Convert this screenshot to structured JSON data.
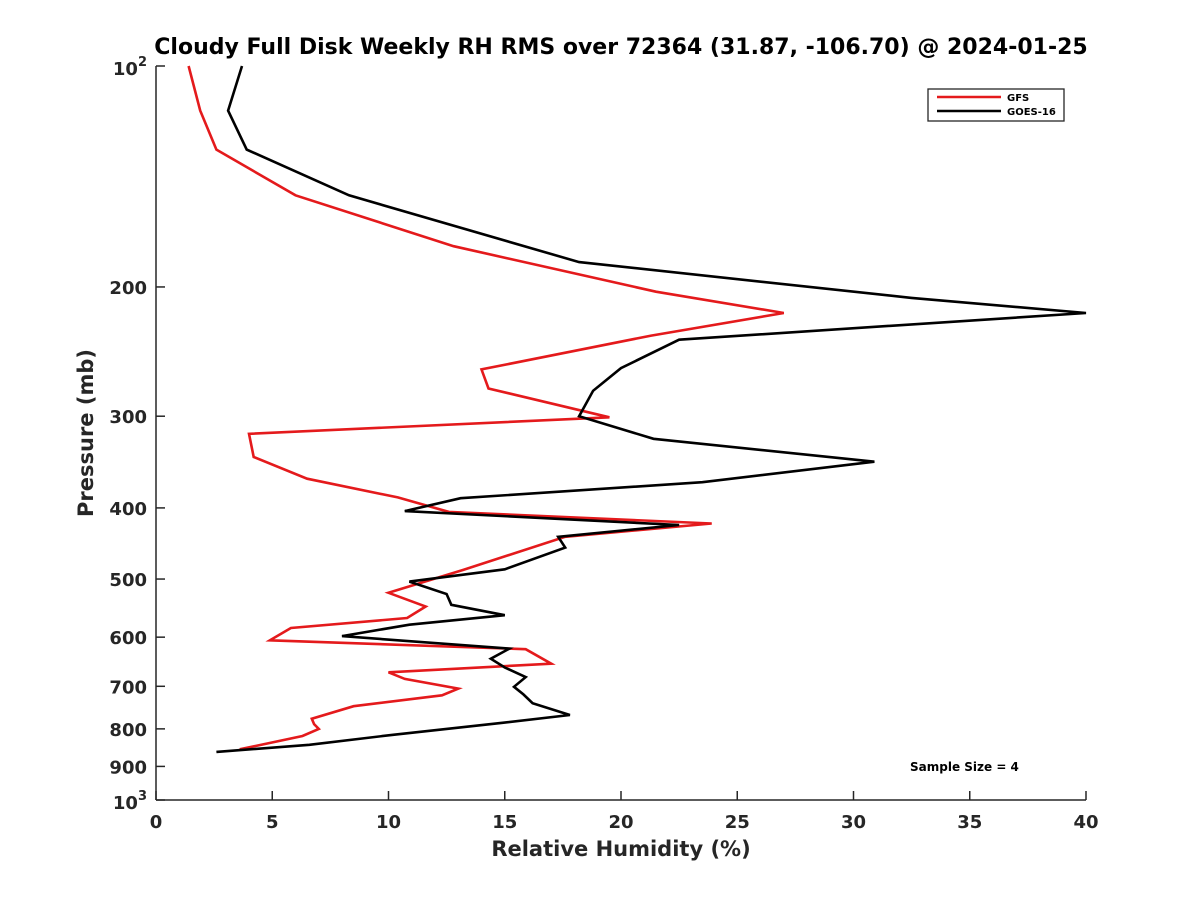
{
  "chart_data": {
    "type": "line",
    "title": "Cloudy Full Disk Weekly RH RMS over 72364 (31.87, -106.70) @ 2024-01-25",
    "xlabel": "Relative Humidity (%)",
    "ylabel": "Pressure (mb)",
    "xlim": [
      0,
      40
    ],
    "ylim": [
      100,
      1000
    ],
    "y_scale": "log",
    "y_reversed": true,
    "grid": false,
    "legend_position": "top-right",
    "xticks": [
      0,
      5,
      10,
      15,
      20,
      25,
      30,
      35,
      40
    ],
    "xtick_labels": [
      "0",
      "5",
      "10",
      "15",
      "20",
      "25",
      "30",
      "35",
      "40"
    ],
    "yticks": [
      {
        "value": 100,
        "base": "10",
        "exp": "2"
      },
      {
        "value": 200,
        "label": "200"
      },
      {
        "value": 300,
        "label": "300"
      },
      {
        "value": 400,
        "label": "400"
      },
      {
        "value": 500,
        "label": "500"
      },
      {
        "value": 600,
        "label": "600"
      },
      {
        "value": 700,
        "label": "700"
      },
      {
        "value": 800,
        "label": "800"
      },
      {
        "value": 900,
        "label": "900"
      },
      {
        "value": 1000,
        "base": "10",
        "exp": "3"
      }
    ],
    "annotation": "Sample Size = 4",
    "series": [
      {
        "name": "GFS",
        "color": "#e41a1c",
        "points": [
          [
            1.4,
            100
          ],
          [
            1.9,
            115
          ],
          [
            2.6,
            130
          ],
          [
            6.0,
            150
          ],
          [
            12.8,
            176
          ],
          [
            21.5,
            203
          ],
          [
            27.0,
            217
          ],
          [
            21.3,
            233
          ],
          [
            14.0,
            259
          ],
          [
            14.3,
            275
          ],
          [
            19.5,
            301
          ],
          [
            4.0,
            317
          ],
          [
            4.2,
            341
          ],
          [
            6.5,
            365
          ],
          [
            10.4,
            387
          ],
          [
            12.6,
            405
          ],
          [
            23.9,
            420
          ],
          [
            17.6,
            438
          ],
          [
            13.2,
            486
          ],
          [
            10.0,
            522
          ],
          [
            11.6,
            545
          ],
          [
            10.8,
            565
          ],
          [
            5.8,
            583
          ],
          [
            4.9,
            606
          ],
          [
            15.9,
            623
          ],
          [
            17.0,
            652
          ],
          [
            10.0,
            670
          ],
          [
            10.7,
            684
          ],
          [
            13.0,
            705
          ],
          [
            12.3,
            720
          ],
          [
            8.5,
            745
          ],
          [
            6.7,
            775
          ],
          [
            6.8,
            788
          ],
          [
            7.0,
            800
          ],
          [
            6.3,
            818
          ],
          [
            3.6,
            853
          ]
        ]
      },
      {
        "name": "GOES-16",
        "color": "#000000",
        "points": [
          [
            3.7,
            100
          ],
          [
            3.1,
            115
          ],
          [
            3.9,
            130
          ],
          [
            8.3,
            150
          ],
          [
            18.2,
            185
          ],
          [
            32.5,
            207
          ],
          [
            40.0,
            217
          ],
          [
            22.5,
            236
          ],
          [
            20.0,
            258
          ],
          [
            18.8,
            277
          ],
          [
            18.2,
            300
          ],
          [
            21.4,
            322
          ],
          [
            30.9,
            346
          ],
          [
            23.5,
            369
          ],
          [
            13.1,
            388
          ],
          [
            10.7,
            404
          ],
          [
            22.5,
            422
          ],
          [
            17.3,
            438
          ],
          [
            17.6,
            453
          ],
          [
            15.0,
            485
          ],
          [
            10.9,
            504
          ],
          [
            12.5,
            524
          ],
          [
            12.7,
            542
          ],
          [
            15.0,
            560
          ],
          [
            10.9,
            577
          ],
          [
            8.0,
            598
          ],
          [
            15.2,
            622
          ],
          [
            14.4,
            642
          ],
          [
            15.0,
            660
          ],
          [
            15.9,
            680
          ],
          [
            15.4,
            701
          ],
          [
            15.8,
            718
          ],
          [
            16.2,
            738
          ],
          [
            17.8,
            766
          ],
          [
            14.9,
            785
          ],
          [
            10.2,
            815
          ],
          [
            6.6,
            841
          ],
          [
            2.6,
            860
          ]
        ]
      }
    ]
  }
}
